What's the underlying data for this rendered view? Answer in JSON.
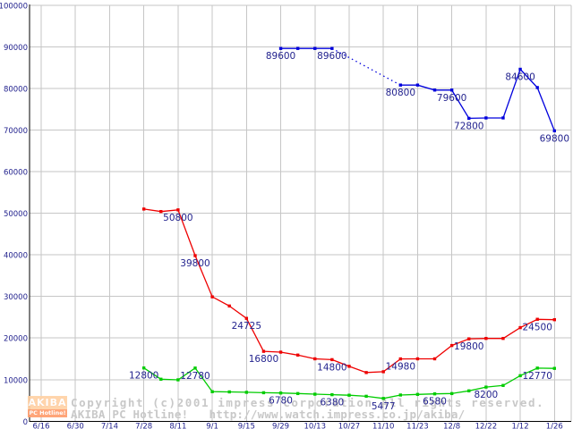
{
  "chart_data": {
    "type": "line",
    "title": "",
    "xlabel": "",
    "ylabel": "",
    "grid": true,
    "legend": "none",
    "x_ticks": [
      "6/16",
      "6/30",
      "7/14",
      "7/28",
      "8/11",
      "9/1",
      "9/15",
      "9/29",
      "10/13",
      "10/27",
      "11/10",
      "11/23",
      "12/8",
      "12/22",
      "1/12",
      "1/26"
    ],
    "y_axis": {
      "min": 0,
      "max": 100000,
      "step": 10000
    },
    "colors": {
      "text": "#23238e",
      "grid": "#c6c6c6",
      "axis": "#000000",
      "background": "#ffffff",
      "blue": "#0000dd",
      "red": "#ee0000",
      "green": "#00cc00",
      "watermark_text": "#c8c8c8",
      "logo_top_bg": "#ffd2a6",
      "logo_bottom_bg": "#ff9e6e",
      "logo_text": "#ffffff"
    },
    "series": [
      {
        "name": "series-blue",
        "color_key": "blue",
        "segments": [
          {
            "style": "solid",
            "points": [
              [
                7,
                89600
              ],
              [
                7.5,
                89600
              ],
              [
                8,
                89600
              ],
              [
                8.5,
                89600
              ]
            ]
          },
          {
            "style": "dotted",
            "markers": false,
            "points": [
              [
                8.5,
                89600
              ],
              [
                10.5,
                80800
              ]
            ]
          },
          {
            "style": "solid",
            "points": [
              [
                10.5,
                80800
              ],
              [
                11,
                80800
              ],
              [
                11.5,
                79600
              ],
              [
                12,
                79600
              ],
              [
                12.5,
                72800
              ],
              [
                13,
                72900
              ],
              [
                13.5,
                72900
              ],
              [
                14,
                84600
              ],
              [
                14.5,
                80200
              ],
              [
                15,
                69800
              ]
            ]
          }
        ],
        "labels": [
          [
            7,
            "89600"
          ],
          [
            8.5,
            "89600"
          ],
          [
            10.5,
            "80800"
          ],
          [
            12,
            "79600"
          ],
          [
            12.5,
            "72800"
          ],
          [
            14,
            "84600"
          ],
          [
            15,
            "69800"
          ]
        ]
      },
      {
        "name": "series-red",
        "color_key": "red",
        "segments": [
          {
            "style": "solid",
            "points": [
              [
                3,
                51000
              ],
              [
                3.5,
                50400
              ],
              [
                4,
                50800
              ],
              [
                4.5,
                39800
              ],
              [
                5,
                29900
              ],
              [
                5.5,
                27700
              ],
              [
                6,
                24725
              ],
              [
                6.5,
                16800
              ],
              [
                7,
                16600
              ],
              [
                7.5,
                15900
              ],
              [
                8,
                15000
              ],
              [
                8.5,
                14800
              ],
              [
                9,
                13200
              ],
              [
                9.5,
                11700
              ],
              [
                10,
                11900
              ],
              [
                10.5,
                14980
              ],
              [
                11,
                15000
              ],
              [
                11.5,
                15000
              ],
              [
                12,
                18200
              ],
              [
                12.5,
                19800
              ],
              [
                13,
                19900
              ],
              [
                13.5,
                19900
              ],
              [
                14,
                22500
              ],
              [
                14.5,
                24500
              ],
              [
                15,
                24400
              ]
            ]
          }
        ],
        "labels": [
          [
            4,
            "50800"
          ],
          [
            4.5,
            "39800"
          ],
          [
            6,
            "24725"
          ],
          [
            6.5,
            "16800"
          ],
          [
            8.5,
            "14800"
          ],
          [
            10.5,
            "14980"
          ],
          [
            12.5,
            "19800"
          ],
          [
            14.5,
            "24500"
          ]
        ]
      },
      {
        "name": "series-green",
        "color_key": "green",
        "segments": [
          {
            "style": "solid",
            "points": [
              [
                3,
                12800
              ],
              [
                3.5,
                10100
              ],
              [
                4,
                9950
              ],
              [
                4.5,
                12780
              ],
              [
                5,
                7100
              ],
              [
                5.5,
                7050
              ],
              [
                6,
                6950
              ],
              [
                6.5,
                6850
              ],
              [
                7,
                6780
              ],
              [
                7.5,
                6650
              ],
              [
                8,
                6500
              ],
              [
                8.5,
                6380
              ],
              [
                9,
                6250
              ],
              [
                9.5,
                6000
              ],
              [
                10,
                5477
              ],
              [
                10.5,
                6300
              ],
              [
                11,
                6450
              ],
              [
                11.5,
                6580
              ],
              [
                12,
                6650
              ],
              [
                12.5,
                7300
              ],
              [
                13,
                8200
              ],
              [
                13.5,
                8600
              ],
              [
                14,
                10950
              ],
              [
                14.5,
                12770
              ],
              [
                15,
                12700
              ]
            ]
          }
        ],
        "labels": [
          [
            3,
            "12800"
          ],
          [
            4.5,
            "12780"
          ],
          [
            7,
            "6780"
          ],
          [
            8.5,
            "6380"
          ],
          [
            10,
            "5477"
          ],
          [
            11.5,
            "6580"
          ],
          [
            13,
            "8200"
          ],
          [
            14.5,
            "12770"
          ]
        ]
      }
    ]
  },
  "watermark": {
    "logo_top": "AKIBA",
    "logo_bottom": "PC Hotline!",
    "line1": "Copyright (c)2001 impress corporation All rights reserved.",
    "line2": "AKIBA PC Hotline!   http://www.watch.impress.co.jp/akiba/"
  }
}
